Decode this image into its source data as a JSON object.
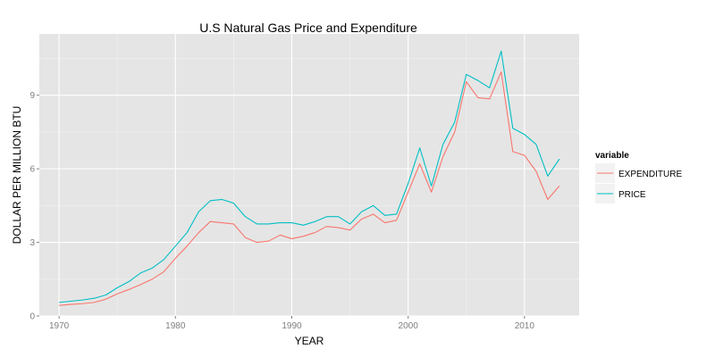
{
  "chart_data": {
    "type": "line",
    "title": "U.S Natural Gas Price and Expenditure",
    "xlabel": "YEAR",
    "ylabel": "DOLLAR PER MILLION BTU",
    "xlim": [
      1968.3,
      2014.7
    ],
    "ylim": [
      0,
      11.5
    ],
    "x_ticks": [
      1970,
      1980,
      1990,
      2000,
      2010
    ],
    "y_ticks": [
      0,
      3,
      6,
      9
    ],
    "grid": true,
    "legend": {
      "title": "variable",
      "position": "right"
    },
    "x": [
      1970,
      1971,
      1972,
      1973,
      1974,
      1975,
      1976,
      1977,
      1978,
      1979,
      1980,
      1981,
      1982,
      1983,
      1984,
      1985,
      1986,
      1987,
      1988,
      1989,
      1990,
      1991,
      1992,
      1993,
      1994,
      1995,
      1996,
      1997,
      1998,
      1999,
      2000,
      2001,
      2002,
      2003,
      2004,
      2005,
      2006,
      2007,
      2008,
      2009,
      2010,
      2011,
      2012,
      2013
    ],
    "series": [
      {
        "name": "EXPENDITURE",
        "color": "#F8766D",
        "values": [
          0.43,
          0.47,
          0.5,
          0.55,
          0.68,
          0.9,
          1.08,
          1.28,
          1.5,
          1.8,
          2.35,
          2.85,
          3.4,
          3.85,
          3.8,
          3.75,
          3.2,
          3.0,
          3.05,
          3.3,
          3.15,
          3.25,
          3.4,
          3.65,
          3.6,
          3.5,
          3.95,
          4.15,
          3.8,
          3.9,
          5.05,
          6.2,
          5.05,
          6.5,
          7.5,
          9.55,
          8.9,
          8.85,
          9.95,
          6.7,
          6.55,
          5.9,
          4.75,
          5.3
        ]
      },
      {
        "name": "PRICE",
        "color": "#00BFC4",
        "values": [
          0.55,
          0.6,
          0.65,
          0.72,
          0.85,
          1.15,
          1.4,
          1.75,
          1.95,
          2.3,
          2.85,
          3.4,
          4.25,
          4.7,
          4.75,
          4.6,
          4.05,
          3.75,
          3.75,
          3.8,
          3.8,
          3.7,
          3.85,
          4.05,
          4.05,
          3.75,
          4.25,
          4.5,
          4.1,
          4.15,
          5.4,
          6.85,
          5.3,
          7.0,
          7.9,
          9.85,
          9.6,
          9.3,
          10.8,
          7.65,
          7.4,
          7.0,
          5.7,
          6.4
        ]
      }
    ]
  }
}
